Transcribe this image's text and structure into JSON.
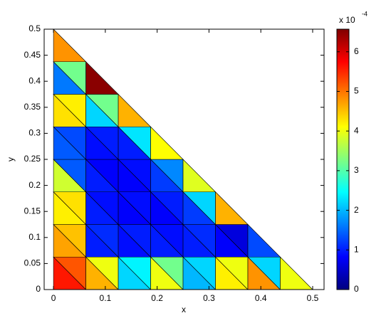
{
  "chart_data": {
    "type": "trimesh",
    "xlabel": "x",
    "ylabel": "y",
    "xlim": [
      -0.018,
      0.522
    ],
    "ylim": [
      0,
      0.5
    ],
    "xticks": [
      0,
      0.1,
      0.2,
      0.3,
      0.4,
      0.5
    ],
    "yticks": [
      0,
      0.05,
      0.1,
      0.15,
      0.2,
      0.25,
      0.3,
      0.35,
      0.4,
      0.45,
      0.5
    ],
    "colormap": "jet",
    "clim": [
      0,
      6.57
    ],
    "colorbar_ticks": [
      0,
      1,
      2,
      3,
      4,
      5,
      6
    ],
    "colorbar_label": "x 10",
    "colorbar_exponent": "-4",
    "triangles": [
      [
        [
          0,
          0
        ],
        [
          0.0625,
          0
        ],
        [
          0,
          0.0625
        ]
      ],
      [
        [
          0.0625,
          0
        ],
        [
          0.0625,
          0.0625
        ],
        [
          0,
          0.0625
        ]
      ],
      [
        [
          0.0625,
          0
        ],
        [
          0.125,
          0
        ],
        [
          0.0625,
          0.0625
        ]
      ],
      [
        [
          0.125,
          0
        ],
        [
          0.125,
          0.0625
        ],
        [
          0.0625,
          0.0625
        ]
      ],
      [
        [
          0.125,
          0
        ],
        [
          0.1875,
          0
        ],
        [
          0.125,
          0.0625
        ]
      ],
      [
        [
          0.1875,
          0
        ],
        [
          0.1875,
          0.0625
        ],
        [
          0.125,
          0.0625
        ]
      ],
      [
        [
          0.1875,
          0
        ],
        [
          0.25,
          0
        ],
        [
          0.1875,
          0.0625
        ]
      ],
      [
        [
          0.25,
          0
        ],
        [
          0.25,
          0.0625
        ],
        [
          0.1875,
          0.0625
        ]
      ],
      [
        [
          0.25,
          0
        ],
        [
          0.3125,
          0
        ],
        [
          0.25,
          0.0625
        ]
      ],
      [
        [
          0.3125,
          0
        ],
        [
          0.3125,
          0.0625
        ],
        [
          0.25,
          0.0625
        ]
      ],
      [
        [
          0.3125,
          0
        ],
        [
          0.375,
          0
        ],
        [
          0.3125,
          0.0625
        ]
      ],
      [
        [
          0.375,
          0
        ],
        [
          0.375,
          0.0625
        ],
        [
          0.3125,
          0.0625
        ]
      ],
      [
        [
          0.375,
          0
        ],
        [
          0.4375,
          0
        ],
        [
          0.375,
          0.0625
        ]
      ],
      [
        [
          0.4375,
          0
        ],
        [
          0.4375,
          0.0625
        ],
        [
          0.375,
          0.0625
        ]
      ],
      [
        [
          0.4375,
          0
        ],
        [
          0.5,
          0
        ],
        [
          0.4375,
          0.0625
        ]
      ],
      [
        [
          0,
          0.0625
        ],
        [
          0.0625,
          0.0625
        ],
        [
          0,
          0.125
        ]
      ],
      [
        [
          0.0625,
          0.0625
        ],
        [
          0.0625,
          0.125
        ],
        [
          0,
          0.125
        ]
      ],
      [
        [
          0.0625,
          0.0625
        ],
        [
          0.125,
          0.0625
        ],
        [
          0.0625,
          0.125
        ]
      ],
      [
        [
          0.125,
          0.0625
        ],
        [
          0.125,
          0.125
        ],
        [
          0.0625,
          0.125
        ]
      ],
      [
        [
          0.125,
          0.0625
        ],
        [
          0.1875,
          0.0625
        ],
        [
          0.125,
          0.125
        ]
      ],
      [
        [
          0.1875,
          0.0625
        ],
        [
          0.1875,
          0.125
        ],
        [
          0.125,
          0.125
        ]
      ],
      [
        [
          0.1875,
          0.0625
        ],
        [
          0.25,
          0.0625
        ],
        [
          0.1875,
          0.125
        ]
      ],
      [
        [
          0.25,
          0.0625
        ],
        [
          0.25,
          0.125
        ],
        [
          0.1875,
          0.125
        ]
      ],
      [
        [
          0.25,
          0.0625
        ],
        [
          0.3125,
          0.0625
        ],
        [
          0.25,
          0.125
        ]
      ],
      [
        [
          0.3125,
          0.0625
        ],
        [
          0.3125,
          0.125
        ],
        [
          0.25,
          0.125
        ]
      ],
      [
        [
          0.3125,
          0.0625
        ],
        [
          0.375,
          0.0625
        ],
        [
          0.3125,
          0.125
        ]
      ],
      [
        [
          0.375,
          0.0625
        ],
        [
          0.375,
          0.125
        ],
        [
          0.3125,
          0.125
        ]
      ],
      [
        [
          0.375,
          0.0625
        ],
        [
          0.4375,
          0.0625
        ],
        [
          0.375,
          0.125
        ]
      ],
      [
        [
          0,
          0.125
        ],
        [
          0.0625,
          0.125
        ],
        [
          0,
          0.1875
        ]
      ],
      [
        [
          0.0625,
          0.125
        ],
        [
          0.0625,
          0.1875
        ],
        [
          0,
          0.1875
        ]
      ],
      [
        [
          0.0625,
          0.125
        ],
        [
          0.125,
          0.125
        ],
        [
          0.0625,
          0.1875
        ]
      ],
      [
        [
          0.125,
          0.125
        ],
        [
          0.125,
          0.1875
        ],
        [
          0.0625,
          0.1875
        ]
      ],
      [
        [
          0.125,
          0.125
        ],
        [
          0.1875,
          0.125
        ],
        [
          0.125,
          0.1875
        ]
      ],
      [
        [
          0.1875,
          0.125
        ],
        [
          0.1875,
          0.1875
        ],
        [
          0.125,
          0.1875
        ]
      ],
      [
        [
          0.1875,
          0.125
        ],
        [
          0.25,
          0.125
        ],
        [
          0.1875,
          0.1875
        ]
      ],
      [
        [
          0.25,
          0.125
        ],
        [
          0.25,
          0.1875
        ],
        [
          0.1875,
          0.1875
        ]
      ],
      [
        [
          0.25,
          0.125
        ],
        [
          0.3125,
          0.125
        ],
        [
          0.25,
          0.1875
        ]
      ],
      [
        [
          0.3125,
          0.125
        ],
        [
          0.3125,
          0.1875
        ],
        [
          0.25,
          0.1875
        ]
      ],
      [
        [
          0.3125,
          0.125
        ],
        [
          0.375,
          0.125
        ],
        [
          0.3125,
          0.1875
        ]
      ],
      [
        [
          0,
          0.1875
        ],
        [
          0.0625,
          0.1875
        ],
        [
          0,
          0.25
        ]
      ],
      [
        [
          0.0625,
          0.1875
        ],
        [
          0.0625,
          0.25
        ],
        [
          0,
          0.25
        ]
      ],
      [
        [
          0.0625,
          0.1875
        ],
        [
          0.125,
          0.1875
        ],
        [
          0.0625,
          0.25
        ]
      ],
      [
        [
          0.125,
          0.1875
        ],
        [
          0.125,
          0.25
        ],
        [
          0.0625,
          0.25
        ]
      ],
      [
        [
          0.125,
          0.1875
        ],
        [
          0.1875,
          0.1875
        ],
        [
          0.125,
          0.25
        ]
      ],
      [
        [
          0.1875,
          0.1875
        ],
        [
          0.1875,
          0.25
        ],
        [
          0.125,
          0.25
        ]
      ],
      [
        [
          0.1875,
          0.1875
        ],
        [
          0.25,
          0.1875
        ],
        [
          0.1875,
          0.25
        ]
      ],
      [
        [
          0.25,
          0.1875
        ],
        [
          0.25,
          0.25
        ],
        [
          0.1875,
          0.25
        ]
      ],
      [
        [
          0.25,
          0.1875
        ],
        [
          0.3125,
          0.1875
        ],
        [
          0.25,
          0.25
        ]
      ],
      [
        [
          0,
          0.25
        ],
        [
          0.0625,
          0.25
        ],
        [
          0,
          0.3125
        ]
      ],
      [
        [
          0.0625,
          0.25
        ],
        [
          0.0625,
          0.3125
        ],
        [
          0,
          0.3125
        ]
      ],
      [
        [
          0.0625,
          0.25
        ],
        [
          0.125,
          0.25
        ],
        [
          0.0625,
          0.3125
        ]
      ],
      [
        [
          0.125,
          0.25
        ],
        [
          0.125,
          0.3125
        ],
        [
          0.0625,
          0.3125
        ]
      ],
      [
        [
          0.125,
          0.25
        ],
        [
          0.1875,
          0.25
        ],
        [
          0.125,
          0.3125
        ]
      ],
      [
        [
          0.1875,
          0.25
        ],
        [
          0.1875,
          0.3125
        ],
        [
          0.125,
          0.3125
        ]
      ],
      [
        [
          0.1875,
          0.25
        ],
        [
          0.25,
          0.25
        ],
        [
          0.1875,
          0.3125
        ]
      ],
      [
        [
          0,
          0.3125
        ],
        [
          0.0625,
          0.3125
        ],
        [
          0,
          0.375
        ]
      ],
      [
        [
          0.0625,
          0.3125
        ],
        [
          0.0625,
          0.375
        ],
        [
          0,
          0.375
        ]
      ],
      [
        [
          0.0625,
          0.3125
        ],
        [
          0.125,
          0.3125
        ],
        [
          0.0625,
          0.375
        ]
      ],
      [
        [
          0.125,
          0.3125
        ],
        [
          0.125,
          0.375
        ],
        [
          0.0625,
          0.375
        ]
      ],
      [
        [
          0.125,
          0.3125
        ],
        [
          0.1875,
          0.3125
        ],
        [
          0.125,
          0.375
        ]
      ],
      [
        [
          0,
          0.375
        ],
        [
          0.0625,
          0.375
        ],
        [
          0,
          0.4375
        ]
      ],
      [
        [
          0.0625,
          0.375
        ],
        [
          0.0625,
          0.4375
        ],
        [
          0,
          0.4375
        ]
      ],
      [
        [
          0.0625,
          0.375
        ],
        [
          0.125,
          0.375
        ],
        [
          0.0625,
          0.4375
        ]
      ],
      [
        [
          0,
          0.4375
        ],
        [
          0.0625,
          0.4375
        ],
        [
          0,
          0.5
        ]
      ]
    ],
    "values": [
      5.6,
      5.2,
      4.6,
      4.0,
      2.2,
      2.4,
      4.0,
      3.2,
      2.0,
      2.2,
      4.2,
      4.0,
      4.8,
      2.2,
      4.0,
      4.7,
      4.5,
      1.0,
      1.1,
      0.9,
      1.0,
      1.0,
      0.9,
      1.0,
      1.1,
      0.8,
      0.6,
      1.3,
      4.2,
      4.3,
      1.0,
      0.9,
      0.8,
      0.9,
      0.8,
      1.0,
      1.2,
      2.2,
      4.6,
      3.8,
      1.4,
      1.0,
      0.8,
      0.8,
      0.9,
      1.2,
      1.7,
      3.9,
      1.4,
      1.3,
      0.9,
      1.0,
      1.0,
      2.3,
      4.1,
      4.3,
      4.2,
      2.2,
      3.2,
      4.6,
      1.6,
      3.2,
      6.5,
      4.8
    ]
  }
}
